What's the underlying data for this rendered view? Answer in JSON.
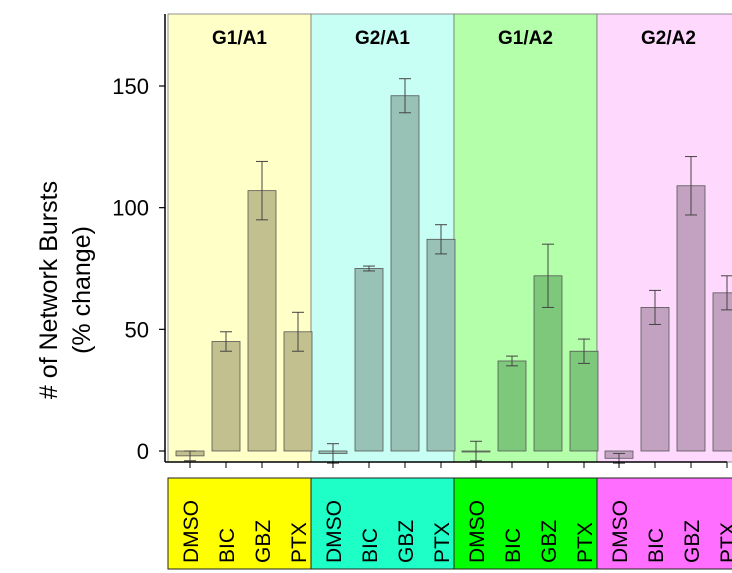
{
  "chart_data": {
    "type": "bar",
    "ylabel": "# of Network Bursts",
    "ylabel_sub": "(% change)",
    "ylim": [
      -8,
      178
    ],
    "yticks": [
      0,
      50,
      100,
      150
    ],
    "grid": false,
    "categories": [
      "DMSO",
      "BIC",
      "GBZ",
      "PTX"
    ],
    "groups": [
      {
        "name": "G1/A1",
        "panel_color": "#ffffc8",
        "label_color": "#ffff00",
        "bar_color": "#c2c08e",
        "values": [
          -2,
          45,
          107,
          49
        ],
        "errors": [
          2,
          4,
          12,
          8
        ]
      },
      {
        "name": "G2/A1",
        "panel_color": "#c8fff4",
        "label_color": "#1effc8",
        "bar_color": "#98c2b6",
        "values": [
          -1,
          75,
          146,
          87
        ],
        "errors": [
          4,
          1,
          7,
          6
        ]
      },
      {
        "name": "G1/A2",
        "panel_color": "#b4ffaa",
        "label_color": "#00ff00",
        "bar_color": "#7dc87b",
        "values": [
          0,
          37,
          72,
          41
        ],
        "errors": [
          4,
          2,
          13,
          5
        ]
      },
      {
        "name": "G2/A2",
        "panel_color": "#ffd8fd",
        "label_color": "#ff6eff",
        "bar_color": "#c3a2c1",
        "values": [
          -3,
          59,
          109,
          65
        ],
        "errors": [
          2,
          7,
          12,
          7
        ]
      }
    ]
  }
}
